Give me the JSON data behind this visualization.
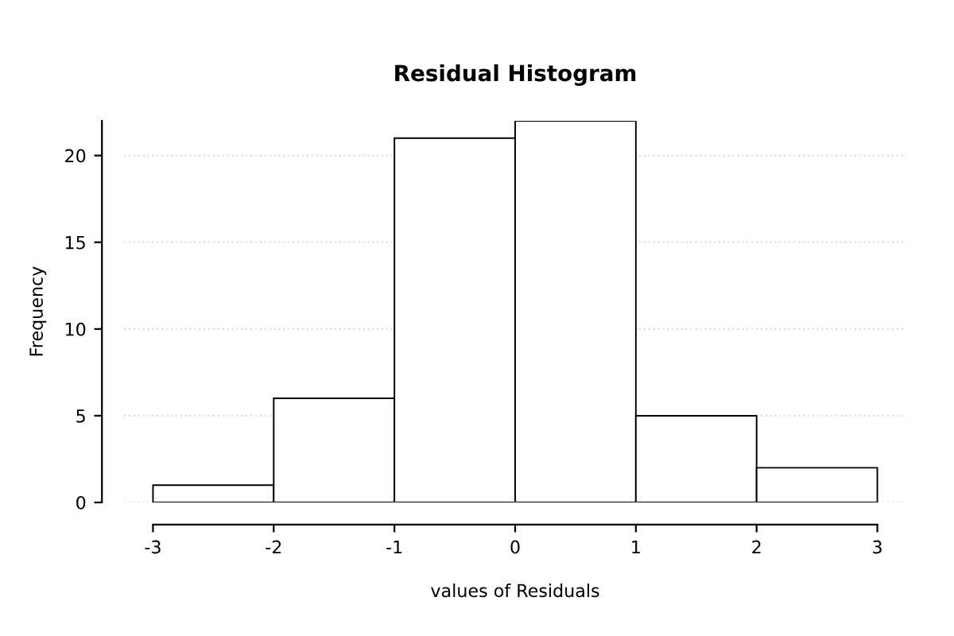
{
  "chart_data": {
    "type": "histogram",
    "title": "Residual Histogram",
    "xlabel": "values of Residuals",
    "ylabel": "Frequency",
    "bins": [
      -3,
      -2,
      -1,
      0,
      1,
      2,
      3
    ],
    "values": [
      1,
      6,
      21,
      22,
      5,
      2
    ],
    "color": "#ffffff",
    "xlim": [
      -3.24,
      3.24
    ],
    "ylim": [
      0,
      22
    ],
    "xticks": [
      -3,
      -2,
      -1,
      0,
      1,
      2,
      3
    ],
    "yticks": [
      0,
      5,
      10,
      15,
      20
    ],
    "grid": "y"
  }
}
